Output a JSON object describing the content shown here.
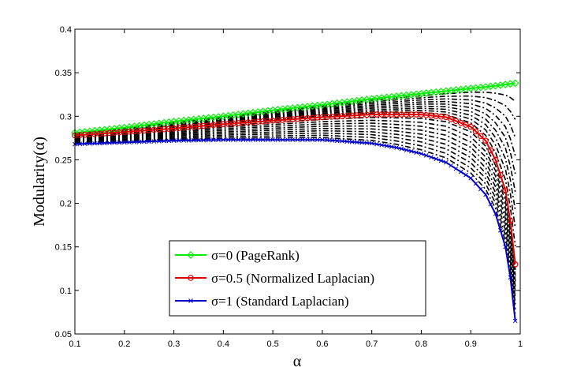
{
  "chart_data": {
    "type": "line",
    "title": "",
    "xlabel": "α",
    "ylabel": "Modularity(α)",
    "xlim": [
      0.1,
      1.0
    ],
    "ylim": [
      0.05,
      0.4
    ],
    "xticks": [
      0.1,
      0.2,
      0.3,
      0.4,
      0.5,
      0.6,
      0.7,
      0.8,
      0.9,
      1.0
    ],
    "yticks": [
      0.05,
      0.1,
      0.15,
      0.2,
      0.25,
      0.3,
      0.35,
      0.4
    ],
    "xtick_labels": [
      "0.1",
      "0.2",
      "0.3",
      "0.4",
      "0.5",
      "0.6",
      "0.7",
      "0.8",
      "0.9",
      "1"
    ],
    "ytick_labels": [
      "0.05",
      "0.1",
      "0.15",
      "0.2",
      "0.25",
      "0.3",
      "0.35",
      "0.4"
    ],
    "grid": false,
    "legend_position": "lower-center",
    "series": [
      {
        "name": "σ=0 (PageRank)",
        "color": "#00ee00",
        "marker": "diamond",
        "x": [
          0.1,
          0.2,
          0.3,
          0.4,
          0.5,
          0.6,
          0.7,
          0.8,
          0.9,
          0.95,
          0.99
        ],
        "y": [
          0.281,
          0.287,
          0.294,
          0.3,
          0.307,
          0.313,
          0.32,
          0.326,
          0.332,
          0.335,
          0.338
        ]
      },
      {
        "name": "σ=0.5 (Normalized Laplacian)",
        "color": "#dd0000",
        "marker": "circle",
        "x": [
          0.1,
          0.2,
          0.3,
          0.4,
          0.5,
          0.6,
          0.7,
          0.8,
          0.85,
          0.9,
          0.93,
          0.95,
          0.97,
          0.98,
          0.99
        ],
        "y": [
          0.278,
          0.282,
          0.286,
          0.291,
          0.295,
          0.299,
          0.302,
          0.302,
          0.299,
          0.288,
          0.272,
          0.25,
          0.215,
          0.18,
          0.13
        ]
      },
      {
        "name": "σ=1 (Standard Laplacian)",
        "color": "#0000cc",
        "marker": "x",
        "x": [
          0.1,
          0.2,
          0.3,
          0.4,
          0.5,
          0.6,
          0.7,
          0.75,
          0.8,
          0.85,
          0.9,
          0.93,
          0.95,
          0.97,
          0.98,
          0.99
        ],
        "y": [
          0.268,
          0.27,
          0.272,
          0.273,
          0.273,
          0.273,
          0.269,
          0.264,
          0.257,
          0.247,
          0.229,
          0.21,
          0.188,
          0.15,
          0.115,
          0.065
        ]
      }
    ],
    "intermediate_curves": {
      "description": "unlabeled black dash-dot curves for σ between 0 and 1",
      "color": "#000000",
      "sigmas": [
        0.05,
        0.1,
        0.15,
        0.2,
        0.25,
        0.3,
        0.35,
        0.4,
        0.45,
        0.55,
        0.6,
        0.65,
        0.7,
        0.75,
        0.8,
        0.85,
        0.9,
        0.95
      ]
    }
  }
}
